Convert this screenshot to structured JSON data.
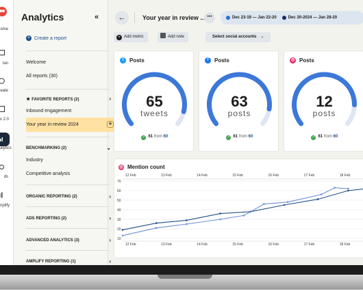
{
  "rail": {
    "items": [
      {
        "label": "ome",
        "icon": "home-icon"
      },
      {
        "label": "lan",
        "icon": "calendar-icon"
      },
      {
        "label": "eate",
        "icon": "create-icon"
      },
      {
        "label": "x 2.0",
        "icon": "inbox-icon"
      },
      {
        "label": "alytics",
        "icon": "analytics-icon"
      },
      {
        "label": "ds",
        "icon": "ads-icon"
      },
      {
        "label": "nplify",
        "icon": "amplify-icon"
      }
    ]
  },
  "sidebar": {
    "title": "Analytics",
    "collapse_icon": "double-chevron-left-icon",
    "create_report": "Create a report",
    "welcome": "Welcome",
    "all_reports": "All reports (30)",
    "favorite_reports": "FAVORITE REPORTS (2)",
    "inbound_engagement": "Inbound engagement",
    "year_in_review": "Your year in review 2024",
    "benchmarking": "BENCHMARKING (2)",
    "industry": "Industry",
    "competitive_analysis": "Competitive analysis",
    "organic_reporting": "ORGANIC REPORTING (2)",
    "ads_reporting": "ADS REPORTING (2)",
    "advanced_analytics": "ADVANCED ANALYTICS (3)",
    "amplify_reporting": "AMPLIFY REPORTING (1)"
  },
  "topbar": {
    "back_icon": "arrow-left-icon",
    "report_title": "Your year in review ...",
    "more": "•••",
    "range_current": "Dec 23-19 — Jan 22-20",
    "range_compare": "Dec 30-2024 — Jan 28-20",
    "colors": {
      "current": "#2a6fdb",
      "compare": "#1b2a6b"
    }
  },
  "toolbar": {
    "add_metric": "Add metric",
    "add_note": "Add note",
    "select_social": "Select social accounts"
  },
  "cards": [
    {
      "network": "twitter",
      "title": "Posts",
      "value": "65",
      "unit": "tweets",
      "delta": "61",
      "from": "from",
      "previous": "60",
      "fill": 0.9,
      "glyph": "t"
    },
    {
      "network": "facebook",
      "title": "Posts",
      "value": "63",
      "unit": "posts",
      "delta": "61",
      "from": "from",
      "previous": "60",
      "fill": 0.88,
      "glyph": "f"
    },
    {
      "network": "instagram",
      "title": "Posts",
      "value": "12",
      "unit": "posts",
      "delta": "61",
      "from": "from",
      "previous": "60",
      "fill": 0.85,
      "glyph": "◎"
    }
  ],
  "mention": {
    "title": "Mention count"
  },
  "chart_data": {
    "type": "line",
    "title": "Mention count",
    "xlabel": "",
    "ylabel": "",
    "ylim": [
      10,
      70
    ],
    "yticks": [
      10,
      20,
      30,
      40,
      50,
      60,
      70
    ],
    "x_top_ticks": [
      "12 Feb",
      "13 Feb",
      "14 Feb",
      "15 Feb",
      "16 Feb",
      "17 Feb",
      "18 Feb"
    ],
    "x_bottom_ticks": [
      "12 Feb",
      "13 Feb",
      "14 Feb",
      "15 Feb",
      "16 Feb",
      "17 Feb",
      "18 Feb"
    ],
    "grid": true,
    "series": [
      {
        "color": "#1f4f8a",
        "points": [
          [
            0,
            19
          ],
          [
            1,
            26
          ],
          [
            1.9,
            29
          ],
          [
            2.9,
            36
          ],
          [
            3.8,
            38
          ],
          [
            4.8,
            45
          ],
          [
            5.8,
            51
          ],
          [
            6.7,
            60
          ],
          [
            7.2,
            62
          ]
        ]
      },
      {
        "color": "#6c8fd4",
        "points": [
          [
            0,
            13
          ],
          [
            1,
            21
          ],
          [
            1.9,
            25
          ],
          [
            2.9,
            30
          ],
          [
            3.6,
            34
          ],
          [
            4.2,
            46
          ],
          [
            4.9,
            48
          ],
          [
            5.9,
            56
          ],
          [
            6.3,
            63
          ],
          [
            6.7,
            62
          ]
        ]
      }
    ]
  }
}
